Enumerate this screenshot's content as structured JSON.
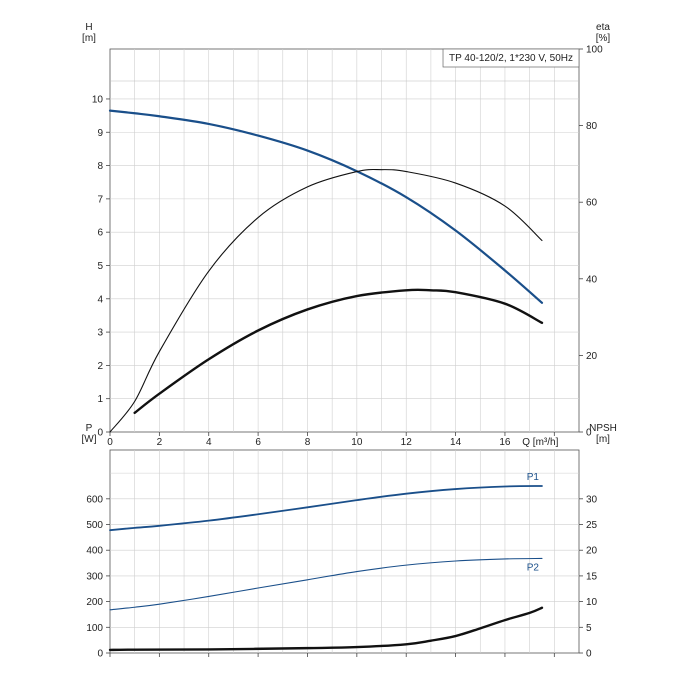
{
  "chart_data": [
    {
      "type": "line",
      "title": "TP 40-120/2, 1*230 V, 50Hz",
      "x_axis": {
        "label": "Q [m³/h]",
        "range": [
          0,
          19
        ],
        "ticks": [
          0,
          2,
          4,
          6,
          8,
          10,
          12,
          14,
          16,
          18
        ],
        "tick_labels": [
          "0",
          "2",
          "4",
          "6",
          "8",
          "10",
          "12",
          "14",
          "16",
          "Q [m³/h]"
        ]
      },
      "y_left": {
        "label": "H",
        "unit": "[m]",
        "range": [
          0,
          11.5
        ],
        "ticks": [
          0,
          1,
          2,
          3,
          4,
          5,
          6,
          7,
          8,
          9,
          10
        ]
      },
      "y_right": {
        "label": "eta",
        "unit": "[%]",
        "range": [
          0,
          100
        ],
        "ticks": [
          0,
          20,
          40,
          60,
          80,
          100
        ]
      },
      "grid": true,
      "series": [
        {
          "axis": "left",
          "style": "blue-thick",
          "x": [
            0,
            1,
            2,
            4,
            6,
            8,
            10,
            12,
            14,
            16,
            17.5
          ],
          "values": [
            9.65,
            9.57,
            9.48,
            9.25,
            8.9,
            8.45,
            7.83,
            7.05,
            6.05,
            4.85,
            3.88
          ]
        },
        {
          "axis": "right",
          "style": "black-thin",
          "x": [
            0,
            1,
            2,
            4,
            6,
            8,
            10,
            11,
            12,
            14,
            16,
            17.5
          ],
          "values": [
            0,
            8,
            21,
            42,
            56,
            64,
            68,
            68.5,
            68,
            65,
            59,
            50
          ]
        },
        {
          "axis": "right",
          "style": "black-thick",
          "x": [
            1,
            2,
            4,
            6,
            8,
            10,
            12,
            13,
            14,
            16,
            17.5
          ],
          "values": [
            5,
            10,
            19,
            26.5,
            32,
            35.5,
            37,
            37,
            36.5,
            33.5,
            28.5
          ]
        }
      ]
    },
    {
      "type": "line",
      "title": "",
      "x_axis": {
        "range": [
          0,
          19
        ],
        "ticks": [
          0,
          2,
          4,
          6,
          8,
          10,
          12,
          14,
          16,
          18
        ]
      },
      "y_left": {
        "label": "P",
        "unit": "[W]",
        "range": [
          0,
          790
        ],
        "ticks": [
          0,
          100,
          200,
          300,
          400,
          500,
          600
        ]
      },
      "y_right": {
        "label": "NPSH",
        "unit": "[m]",
        "range": [
          0,
          39.5
        ],
        "ticks": [
          0,
          5,
          10,
          15,
          20,
          25,
          30
        ]
      },
      "grid": true,
      "series": [
        {
          "name": "P1",
          "axis": "left",
          "style": "blue-medium",
          "x": [
            0,
            1,
            2,
            4,
            6,
            8,
            10,
            12,
            14,
            16,
            17.5
          ],
          "values": [
            478,
            487,
            495,
            515,
            540,
            567,
            595,
            620,
            638,
            648,
            650
          ]
        },
        {
          "name": "P2",
          "axis": "left",
          "style": "blue-thin",
          "x": [
            0,
            1,
            2,
            4,
            6,
            8,
            10,
            12,
            14,
            16,
            17.5
          ],
          "values": [
            168,
            178,
            190,
            220,
            253,
            285,
            317,
            342,
            358,
            366,
            368
          ]
        },
        {
          "axis": "right",
          "style": "black-thick",
          "x": [
            0,
            1,
            4,
            8,
            10,
            12,
            13,
            14,
            15,
            16,
            17,
            17.5
          ],
          "values": [
            0.6,
            0.65,
            0.7,
            0.95,
            1.15,
            1.7,
            2.4,
            3.3,
            4.8,
            6.4,
            7.8,
            8.8
          ]
        }
      ]
    }
  ]
}
